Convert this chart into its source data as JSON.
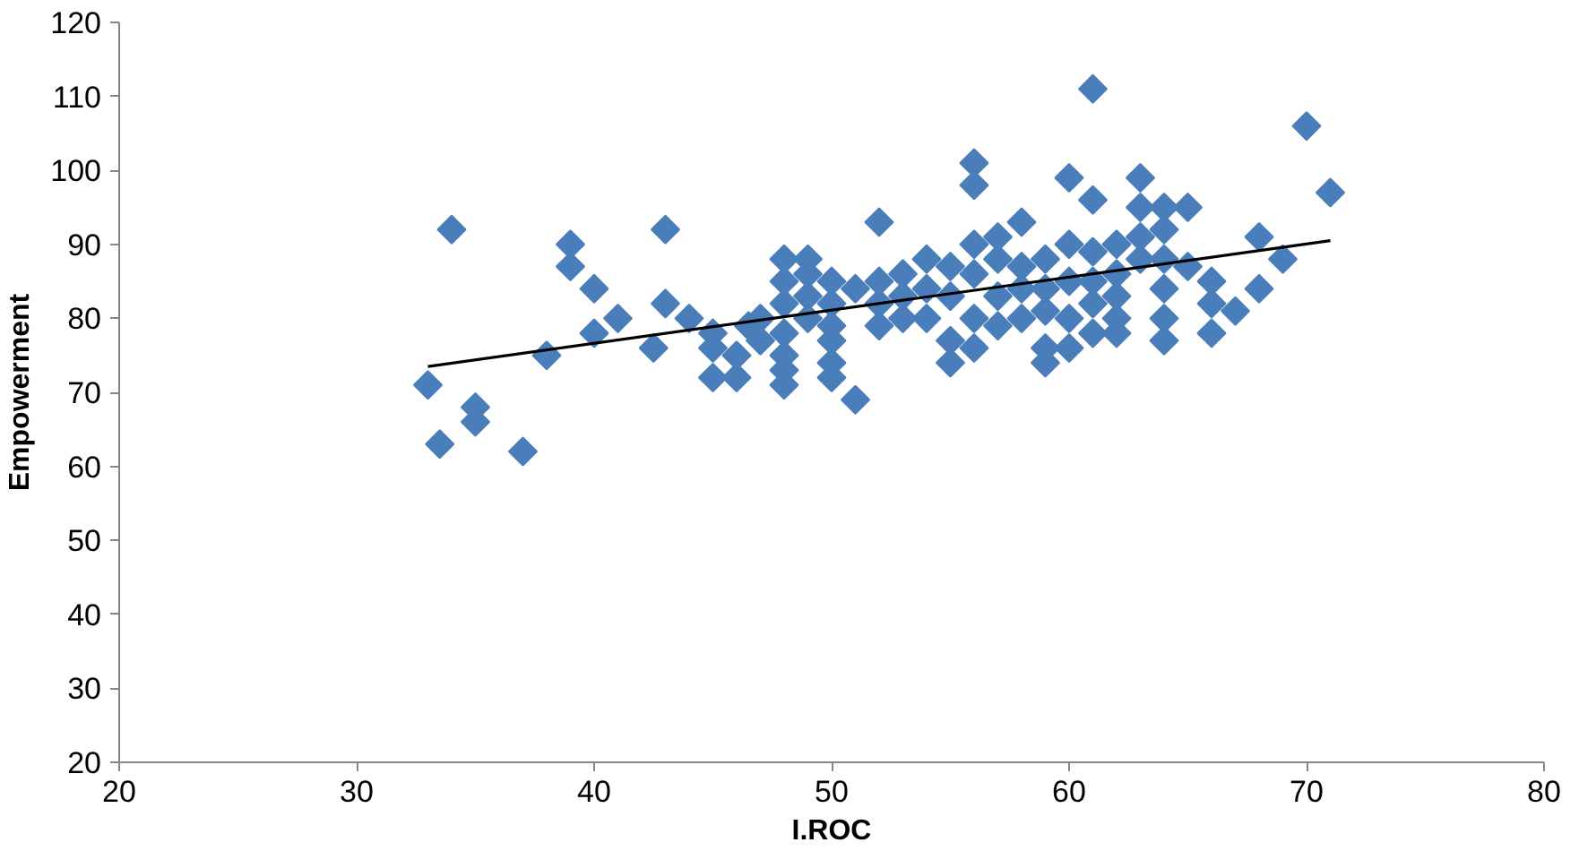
{
  "chart_data": {
    "type": "scatter",
    "xlabel": "I.ROC",
    "ylabel": "Empowerment",
    "xlim": [
      20,
      80
    ],
    "ylim": [
      20,
      120
    ],
    "xticks": [
      20,
      30,
      40,
      50,
      60,
      70,
      80
    ],
    "yticks": [
      20,
      30,
      40,
      50,
      60,
      70,
      80,
      90,
      100,
      110,
      120
    ],
    "grid": false,
    "series": [
      {
        "marker": "diamond",
        "color": "#4a7ebb",
        "x": [
          33,
          33.5,
          34,
          35,
          35,
          37,
          38,
          39,
          39,
          40,
          40,
          41,
          42.5,
          43,
          43,
          44,
          45,
          45,
          45,
          46,
          46,
          46.5,
          47,
          47,
          48,
          48,
          48,
          48,
          48,
          48,
          48,
          49,
          49,
          49,
          49,
          50,
          50,
          50,
          50,
          50,
          50,
          51,
          51,
          52,
          52,
          52,
          52,
          53,
          53,
          53,
          54,
          54,
          54,
          55,
          55,
          55,
          55,
          56,
          56,
          56,
          56,
          56,
          56,
          57,
          57,
          57,
          57,
          58,
          58,
          58,
          58,
          59,
          59,
          59,
          59,
          59,
          60,
          60,
          60,
          60,
          60,
          61,
          61,
          61,
          61,
          61,
          61,
          62,
          62,
          62,
          62,
          62,
          63,
          63,
          63,
          63,
          64,
          64,
          64,
          64,
          64,
          64,
          65,
          65,
          66,
          66,
          66,
          67,
          68,
          68,
          69,
          70,
          71
        ],
        "values": [
          71,
          63,
          92,
          68,
          66,
          62,
          75,
          90,
          87,
          84,
          78,
          80,
          76,
          92,
          82,
          80,
          78,
          76,
          72,
          75,
          72,
          79,
          80,
          77,
          88,
          85,
          82,
          78,
          75,
          73,
          71,
          88,
          86,
          83,
          80,
          85,
          82,
          79,
          77,
          74,
          72,
          69,
          84,
          93,
          85,
          82,
          79,
          86,
          83,
          80,
          88,
          84,
          80,
          87,
          83,
          77,
          74,
          101,
          98,
          90,
          86,
          80,
          76,
          91,
          88,
          83,
          79,
          93,
          87,
          84,
          80,
          88,
          84,
          81,
          76,
          74,
          99,
          90,
          85,
          80,
          76,
          111,
          96,
          89,
          85,
          82,
          78,
          90,
          86,
          83,
          80,
          78,
          99,
          95,
          91,
          88,
          95,
          92,
          88,
          84,
          80,
          77,
          95,
          87,
          85,
          82,
          78,
          81,
          91,
          84,
          88,
          106,
          97
        ]
      },
      {
        "type": "line",
        "color": "#000000",
        "x": [
          33,
          71
        ],
        "values": [
          73.5,
          90.5
        ]
      }
    ]
  }
}
